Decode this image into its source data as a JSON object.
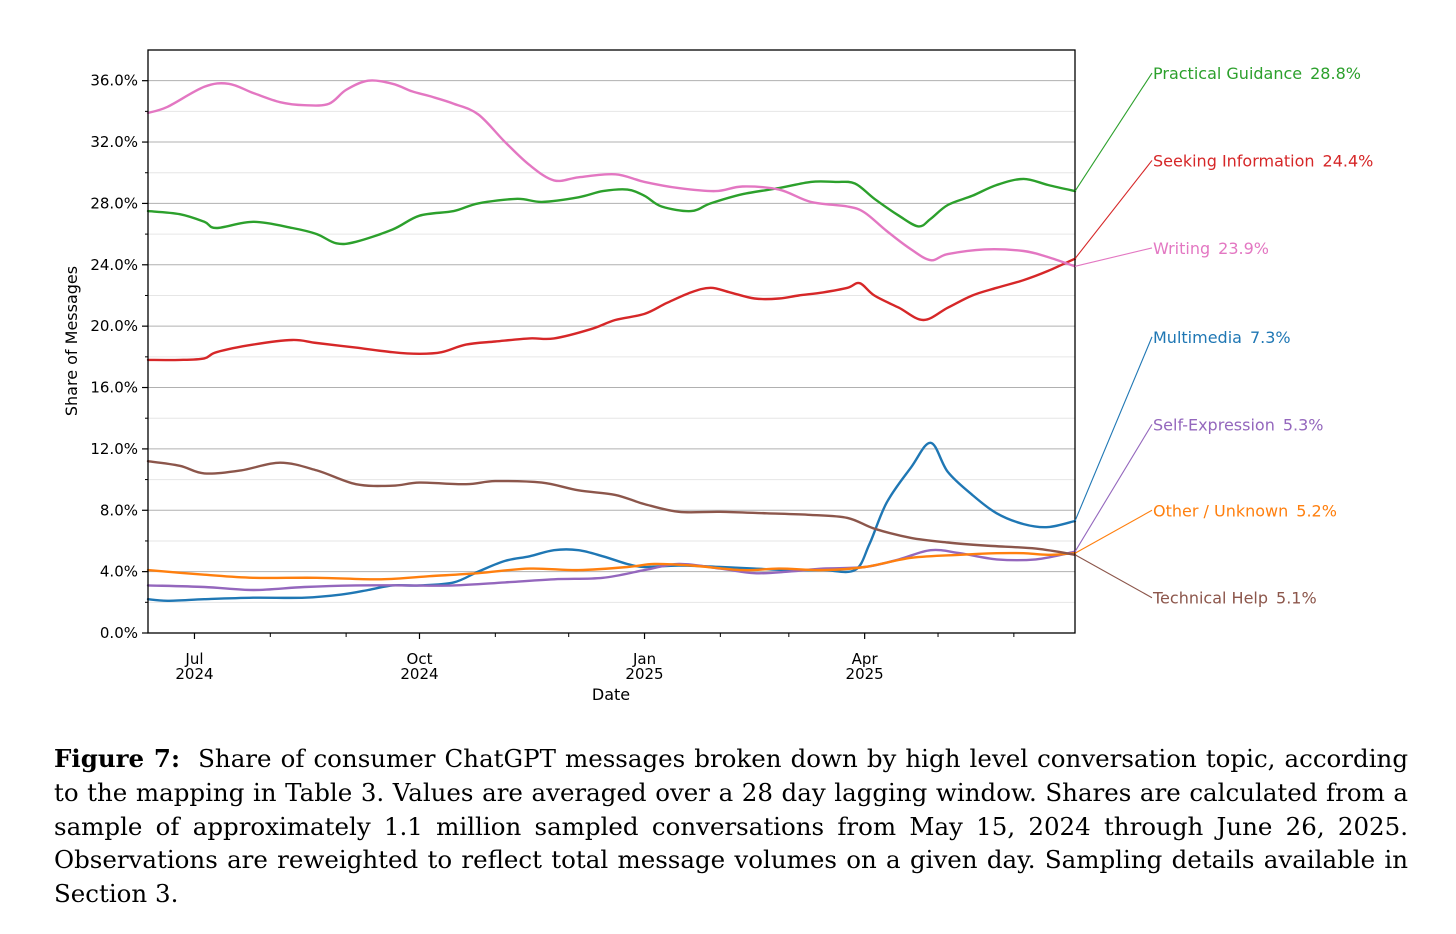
{
  "chart_data": {
    "type": "line",
    "xlabel": "Date",
    "ylabel": "Share of Messages",
    "x_range": [
      "2024-06-12",
      "2025-06-26"
    ],
    "ylim": [
      0,
      0.38
    ],
    "y_ticks": [
      0,
      0.04,
      0.08,
      0.12,
      0.16,
      0.2,
      0.24,
      0.28,
      0.32,
      0.36
    ],
    "y_tick_labels": [
      "0.0%",
      "4.0%",
      "8.0%",
      "12.0%",
      "16.0%",
      "20.0%",
      "24.0%",
      "28.0%",
      "32.0%",
      "36.0%"
    ],
    "x_ticks": [
      {
        "date": "2024-07-01",
        "line1": "Jul",
        "line2": "2024"
      },
      {
        "date": "2024-10-01",
        "line1": "Oct",
        "line2": "2024"
      },
      {
        "date": "2025-01-01",
        "line1": "Jan",
        "line2": "2025"
      },
      {
        "date": "2025-04-01",
        "line1": "Apr",
        "line2": "2025"
      }
    ],
    "x_minor_ticks": [
      "2024-08-01",
      "2024-09-01",
      "2024-11-01",
      "2024-12-01",
      "2025-02-01",
      "2025-03-01",
      "2025-05-01",
      "2025-06-01"
    ],
    "grid": "horizontal",
    "legend_placement": "right, labels at line ends",
    "series": [
      {
        "name": "Practical Guidance",
        "end_label": "28.8%",
        "color": "#2ca02c",
        "label_y": 0.365,
        "points": [
          [
            "2024-06-12",
            0.275
          ],
          [
            "2024-06-25",
            0.273
          ],
          [
            "2024-07-05",
            0.268
          ],
          [
            "2024-07-10",
            0.264
          ],
          [
            "2024-07-25",
            0.268
          ],
          [
            "2024-08-10",
            0.264
          ],
          [
            "2024-08-20",
            0.26
          ],
          [
            "2024-08-28",
            0.254
          ],
          [
            "2024-09-05",
            0.255
          ],
          [
            "2024-09-20",
            0.263
          ],
          [
            "2024-10-01",
            0.272
          ],
          [
            "2024-10-15",
            0.275
          ],
          [
            "2024-10-25",
            0.28
          ],
          [
            "2024-11-10",
            0.283
          ],
          [
            "2024-11-20",
            0.281
          ],
          [
            "2024-12-05",
            0.284
          ],
          [
            "2024-12-15",
            0.288
          ],
          [
            "2024-12-25",
            0.289
          ],
          [
            "2025-01-01",
            0.285
          ],
          [
            "2025-01-08",
            0.278
          ],
          [
            "2025-01-20",
            0.275
          ],
          [
            "2025-01-28",
            0.28
          ],
          [
            "2025-02-10",
            0.286
          ],
          [
            "2025-02-25",
            0.29
          ],
          [
            "2025-03-10",
            0.294
          ],
          [
            "2025-03-20",
            0.294
          ],
          [
            "2025-03-28",
            0.293
          ],
          [
            "2025-04-05",
            0.283
          ],
          [
            "2025-04-15",
            0.272
          ],
          [
            "2025-04-23",
            0.265
          ],
          [
            "2025-04-28",
            0.27
          ],
          [
            "2025-05-05",
            0.279
          ],
          [
            "2025-05-15",
            0.285
          ],
          [
            "2025-05-25",
            0.292
          ],
          [
            "2025-06-05",
            0.296
          ],
          [
            "2025-06-15",
            0.292
          ],
          [
            "2025-06-26",
            0.288
          ]
        ]
      },
      {
        "name": "Seeking Information",
        "end_label": "24.4%",
        "color": "#d62728",
        "label_y": 0.308,
        "points": [
          [
            "2024-06-12",
            0.178
          ],
          [
            "2024-06-25",
            0.178
          ],
          [
            "2024-07-05",
            0.179
          ],
          [
            "2024-07-10",
            0.183
          ],
          [
            "2024-07-25",
            0.188
          ],
          [
            "2024-08-10",
            0.191
          ],
          [
            "2024-08-20",
            0.189
          ],
          [
            "2024-09-05",
            0.186
          ],
          [
            "2024-09-20",
            0.183
          ],
          [
            "2024-10-01",
            0.182
          ],
          [
            "2024-10-10",
            0.183
          ],
          [
            "2024-10-20",
            0.188
          ],
          [
            "2024-11-01",
            0.19
          ],
          [
            "2024-11-15",
            0.192
          ],
          [
            "2024-11-25",
            0.192
          ],
          [
            "2024-12-10",
            0.198
          ],
          [
            "2024-12-20",
            0.204
          ],
          [
            "2025-01-01",
            0.208
          ],
          [
            "2025-01-10",
            0.215
          ],
          [
            "2025-01-20",
            0.222
          ],
          [
            "2025-01-28",
            0.225
          ],
          [
            "2025-02-05",
            0.222
          ],
          [
            "2025-02-15",
            0.218
          ],
          [
            "2025-02-25",
            0.218
          ],
          [
            "2025-03-05",
            0.22
          ],
          [
            "2025-03-15",
            0.222
          ],
          [
            "2025-03-25",
            0.225
          ],
          [
            "2025-03-30",
            0.228
          ],
          [
            "2025-04-05",
            0.22
          ],
          [
            "2025-04-15",
            0.212
          ],
          [
            "2025-04-25",
            0.204
          ],
          [
            "2025-05-05",
            0.212
          ],
          [
            "2025-05-15",
            0.22
          ],
          [
            "2025-05-25",
            0.225
          ],
          [
            "2025-06-05",
            0.23
          ],
          [
            "2025-06-15",
            0.236
          ],
          [
            "2025-06-26",
            0.244
          ]
        ]
      },
      {
        "name": "Writing",
        "end_label": "23.9%",
        "color": "#e377c2",
        "label_y": 0.251,
        "points": [
          [
            "2024-06-12",
            0.339
          ],
          [
            "2024-06-20",
            0.343
          ],
          [
            "2024-07-05",
            0.356
          ],
          [
            "2024-07-15",
            0.358
          ],
          [
            "2024-07-25",
            0.352
          ],
          [
            "2024-08-05",
            0.346
          ],
          [
            "2024-08-15",
            0.344
          ],
          [
            "2024-08-25",
            0.345
          ],
          [
            "2024-09-01",
            0.354
          ],
          [
            "2024-09-10",
            0.36
          ],
          [
            "2024-09-20",
            0.358
          ],
          [
            "2024-09-28",
            0.353
          ],
          [
            "2024-10-05",
            0.35
          ],
          [
            "2024-10-15",
            0.345
          ],
          [
            "2024-10-25",
            0.338
          ],
          [
            "2024-11-05",
            0.32
          ],
          [
            "2024-11-15",
            0.305
          ],
          [
            "2024-11-25",
            0.295
          ],
          [
            "2024-12-05",
            0.297
          ],
          [
            "2024-12-20",
            0.299
          ],
          [
            "2025-01-01",
            0.294
          ],
          [
            "2025-01-15",
            0.29
          ],
          [
            "2025-01-30",
            0.288
          ],
          [
            "2025-02-10",
            0.291
          ],
          [
            "2025-02-25",
            0.289
          ],
          [
            "2025-03-10",
            0.281
          ],
          [
            "2025-03-25",
            0.278
          ],
          [
            "2025-04-01",
            0.274
          ],
          [
            "2025-04-10",
            0.262
          ],
          [
            "2025-04-20",
            0.25
          ],
          [
            "2025-04-28",
            0.243
          ],
          [
            "2025-05-05",
            0.247
          ],
          [
            "2025-05-20",
            0.25
          ],
          [
            "2025-06-05",
            0.249
          ],
          [
            "2025-06-15",
            0.245
          ],
          [
            "2025-06-26",
            0.239
          ]
        ]
      },
      {
        "name": "Multimedia",
        "end_label": "7.3%",
        "color": "#1f77b4",
        "label_y": 0.193,
        "points": [
          [
            "2024-06-12",
            0.022
          ],
          [
            "2024-06-20",
            0.021
          ],
          [
            "2024-07-05",
            0.022
          ],
          [
            "2024-07-25",
            0.023
          ],
          [
            "2024-08-15",
            0.023
          ],
          [
            "2024-08-30",
            0.025
          ],
          [
            "2024-09-10",
            0.028
          ],
          [
            "2024-09-20",
            0.031
          ],
          [
            "2024-10-01",
            0.031
          ],
          [
            "2024-10-15",
            0.033
          ],
          [
            "2024-10-25",
            0.04
          ],
          [
            "2024-11-05",
            0.047
          ],
          [
            "2024-11-15",
            0.05
          ],
          [
            "2024-11-25",
            0.054
          ],
          [
            "2024-12-05",
            0.054
          ],
          [
            "2024-12-15",
            0.05
          ],
          [
            "2024-12-25",
            0.045
          ],
          [
            "2025-01-01",
            0.043
          ],
          [
            "2025-01-15",
            0.044
          ],
          [
            "2025-02-01",
            0.043
          ],
          [
            "2025-02-15",
            0.042
          ],
          [
            "2025-03-01",
            0.041
          ],
          [
            "2025-03-15",
            0.041
          ],
          [
            "2025-03-28",
            0.041
          ],
          [
            "2025-04-03",
            0.058
          ],
          [
            "2025-04-10",
            0.085
          ],
          [
            "2025-04-20",
            0.108
          ],
          [
            "2025-04-28",
            0.124
          ],
          [
            "2025-05-05",
            0.105
          ],
          [
            "2025-05-15",
            0.09
          ],
          [
            "2025-05-25",
            0.078
          ],
          [
            "2025-06-05",
            0.071
          ],
          [
            "2025-06-15",
            0.069
          ],
          [
            "2025-06-26",
            0.073
          ]
        ]
      },
      {
        "name": "Self-Expression",
        "end_label": "5.3%",
        "color": "#9467bd",
        "label_y": 0.136,
        "points": [
          [
            "2024-06-12",
            0.031
          ],
          [
            "2024-07-05",
            0.03
          ],
          [
            "2024-07-25",
            0.028
          ],
          [
            "2024-08-15",
            0.03
          ],
          [
            "2024-09-05",
            0.031
          ],
          [
            "2024-09-25",
            0.031
          ],
          [
            "2024-10-15",
            0.031
          ],
          [
            "2024-11-05",
            0.033
          ],
          [
            "2024-11-25",
            0.035
          ],
          [
            "2024-12-15",
            0.036
          ],
          [
            "2025-01-01",
            0.041
          ],
          [
            "2025-01-15",
            0.045
          ],
          [
            "2025-02-01",
            0.042
          ],
          [
            "2025-02-15",
            0.039
          ],
          [
            "2025-03-01",
            0.04
          ],
          [
            "2025-03-15",
            0.042
          ],
          [
            "2025-04-01",
            0.043
          ],
          [
            "2025-04-15",
            0.048
          ],
          [
            "2025-04-28",
            0.054
          ],
          [
            "2025-05-10",
            0.052
          ],
          [
            "2025-05-25",
            0.048
          ],
          [
            "2025-06-10",
            0.048
          ],
          [
            "2025-06-26",
            0.053
          ]
        ]
      },
      {
        "name": "Other / Unknown",
        "end_label": "5.2%",
        "color": "#ff7f0e",
        "label_y": 0.08,
        "points": [
          [
            "2024-06-12",
            0.041
          ],
          [
            "2024-07-05",
            0.038
          ],
          [
            "2024-07-25",
            0.036
          ],
          [
            "2024-08-20",
            0.036
          ],
          [
            "2024-09-15",
            0.035
          ],
          [
            "2024-10-05",
            0.037
          ],
          [
            "2024-10-25",
            0.039
          ],
          [
            "2024-11-15",
            0.042
          ],
          [
            "2024-12-05",
            0.041
          ],
          [
            "2024-12-25",
            0.043
          ],
          [
            "2025-01-05",
            0.045
          ],
          [
            "2025-01-20",
            0.044
          ],
          [
            "2025-02-10",
            0.041
          ],
          [
            "2025-02-25",
            0.042
          ],
          [
            "2025-03-15",
            0.041
          ],
          [
            "2025-04-01",
            0.043
          ],
          [
            "2025-04-20",
            0.049
          ],
          [
            "2025-05-10",
            0.051
          ],
          [
            "2025-05-25",
            0.052
          ],
          [
            "2025-06-05",
            0.052
          ],
          [
            "2025-06-15",
            0.051
          ],
          [
            "2025-06-26",
            0.052
          ]
        ]
      },
      {
        "name": "Technical Help",
        "end_label": "5.1%",
        "color": "#8c564b",
        "label_y": 0.023,
        "points": [
          [
            "2024-06-12",
            0.112
          ],
          [
            "2024-06-25",
            0.109
          ],
          [
            "2024-07-05",
            0.104
          ],
          [
            "2024-07-20",
            0.106
          ],
          [
            "2024-08-05",
            0.111
          ],
          [
            "2024-08-20",
            0.106
          ],
          [
            "2024-09-05",
            0.097
          ],
          [
            "2024-09-20",
            0.096
          ],
          [
            "2024-10-01",
            0.098
          ],
          [
            "2024-10-20",
            0.097
          ],
          [
            "2024-11-01",
            0.099
          ],
          [
            "2024-11-20",
            0.098
          ],
          [
            "2024-12-05",
            0.093
          ],
          [
            "2024-12-20",
            0.09
          ],
          [
            "2025-01-01",
            0.084
          ],
          [
            "2025-01-15",
            0.079
          ],
          [
            "2025-02-01",
            0.079
          ],
          [
            "2025-02-20",
            0.078
          ],
          [
            "2025-03-10",
            0.077
          ],
          [
            "2025-03-25",
            0.075
          ],
          [
            "2025-04-05",
            0.068
          ],
          [
            "2025-04-20",
            0.062
          ],
          [
            "2025-05-05",
            0.059
          ],
          [
            "2025-05-20",
            0.057
          ],
          [
            "2025-06-10",
            0.055
          ],
          [
            "2025-06-26",
            0.051
          ]
        ]
      }
    ]
  },
  "caption": {
    "label": "Figure 7:",
    "text": "Share of consumer ChatGPT messages broken down by high level conversation topic, according to the mapping in Table 3. Values are averaged over a 28 day lagging window. Shares are calculated from a sample of approximately 1.1 million sampled conversations from May 15, 2024 through June 26, 2025. Observations are reweighted to reflect total message volumes on a given day. Sampling details available in Section 3."
  }
}
